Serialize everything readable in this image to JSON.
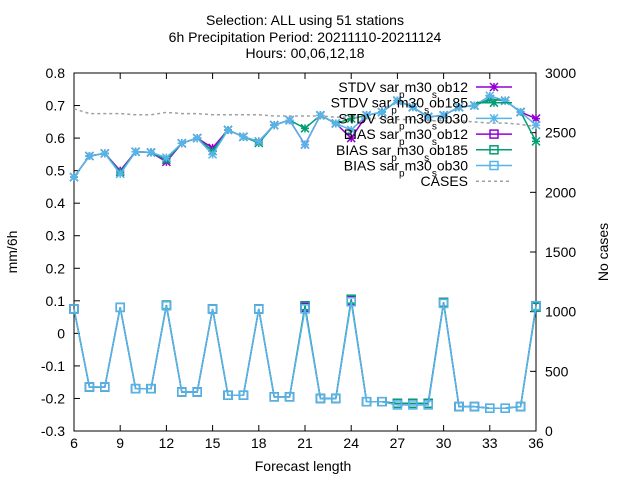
{
  "chart_data": {
    "type": "line",
    "title_lines": [
      "Selection: ALL using    51 stations",
      "6h Precipitation   Period: 20211110-20211124",
      "Hours: 00,06,12,18"
    ],
    "xlabel": "Forecast length",
    "ylabel": "mm/6h",
    "y2label": "No cases",
    "xlim": [
      6,
      36
    ],
    "ylim": [
      -0.3,
      0.8
    ],
    "y2lim": [
      0,
      3000
    ],
    "x_ticks": [
      6,
      9,
      12,
      15,
      18,
      21,
      24,
      27,
      30,
      33,
      36
    ],
    "y_ticks": [
      -0.3,
      -0.2,
      -0.1,
      0,
      0.1,
      0.2,
      0.3,
      0.4,
      0.5,
      0.6,
      0.7,
      0.8
    ],
    "y2_ticks": [
      0,
      500,
      1000,
      1500,
      2000,
      2500,
      3000
    ],
    "y_tick_labels": [
      "-0.3",
      "-0.2",
      "-0.1",
      "0",
      "0.1",
      "0.2",
      "0.3",
      "0.4",
      "0.5",
      "0.6",
      "0.7",
      "0.8"
    ],
    "legend_position": "top-right",
    "x": [
      6,
      7,
      8,
      9,
      10,
      11,
      12,
      13,
      14,
      15,
      16,
      17,
      18,
      19,
      20,
      21,
      22,
      23,
      24,
      25,
      26,
      27,
      28,
      29,
      30,
      31,
      32,
      33,
      34,
      35,
      36
    ],
    "series": [
      {
        "legend": [
          "STDV sar",
          "p",
          "m30",
          "s",
          "ob12"
        ],
        "color": "#9400d3",
        "marker": "star",
        "axis": "y1",
        "values": [
          0.48,
          0.545,
          0.553,
          0.5,
          0.558,
          0.556,
          0.527,
          0.584,
          0.6,
          0.57,
          0.625,
          0.604,
          0.59,
          0.64,
          0.655,
          0.58,
          0.67,
          0.645,
          0.6,
          0.67,
          0.68,
          0.715,
          0.695,
          0.665,
          0.67,
          0.695,
          0.7,
          0.72,
          0.715,
          0.68,
          0.66
        ]
      },
      {
        "legend": [
          "STDV sar",
          "p",
          "m30",
          "s",
          "ob185"
        ],
        "color": "#009e73",
        "marker": "star",
        "axis": "y1",
        "values": [
          0.48,
          0.545,
          0.553,
          0.495,
          0.558,
          0.556,
          0.533,
          0.584,
          0.6,
          0.56,
          0.625,
          0.604,
          0.585,
          0.64,
          0.655,
          0.63,
          0.67,
          0.645,
          0.66,
          0.67,
          0.68,
          0.715,
          0.695,
          0.665,
          0.67,
          0.695,
          0.7,
          0.72,
          0.715,
          0.68,
          0.59
        ]
      },
      {
        "legend": [
          "STDV sar",
          "p",
          "m30",
          "s",
          "ob30"
        ],
        "color": "#56b4e9",
        "marker": "star",
        "axis": "y1",
        "values": [
          0.48,
          0.545,
          0.553,
          0.49,
          0.558,
          0.556,
          0.54,
          0.584,
          0.6,
          0.55,
          0.625,
          0.604,
          0.59,
          0.64,
          0.655,
          0.58,
          0.67,
          0.645,
          0.625,
          0.67,
          0.68,
          0.715,
          0.695,
          0.665,
          0.67,
          0.695,
          0.7,
          0.73,
          0.715,
          0.68,
          0.64
        ]
      },
      {
        "legend": [
          "BIAS sar",
          "p",
          "m30",
          "s",
          "ob12"
        ],
        "color": "#9400d3",
        "marker": "square",
        "axis": "y1",
        "values": [
          0.075,
          -0.165,
          -0.165,
          0.08,
          -0.17,
          -0.17,
          0.085,
          -0.18,
          -0.18,
          0.075,
          -0.19,
          -0.19,
          0.075,
          -0.195,
          -0.195,
          0.08,
          -0.2,
          -0.2,
          0.1,
          -0.21,
          -0.21,
          -0.215,
          -0.215,
          -0.215,
          0.095,
          -0.225,
          -0.225,
          -0.23,
          -0.23,
          -0.225,
          0.085
        ]
      },
      {
        "legend": [
          "BIAS sar",
          "p",
          "m30",
          "s",
          "ob185"
        ],
        "color": "#009e73",
        "marker": "square",
        "axis": "y1",
        "values": [
          0.075,
          -0.165,
          -0.165,
          0.08,
          -0.17,
          -0.17,
          0.087,
          -0.18,
          -0.18,
          0.075,
          -0.19,
          -0.19,
          0.075,
          -0.195,
          -0.195,
          0.085,
          -0.2,
          -0.2,
          0.105,
          -0.21,
          -0.21,
          -0.215,
          -0.215,
          -0.215,
          0.095,
          -0.225,
          -0.225,
          -0.23,
          -0.23,
          -0.225,
          0.08
        ]
      },
      {
        "legend": [
          "BIAS sar",
          "p",
          "m30",
          "s",
          "ob30"
        ],
        "color": "#56b4e9",
        "marker": "square",
        "axis": "y1",
        "values": [
          0.075,
          -0.165,
          -0.165,
          0.08,
          -0.17,
          -0.17,
          0.085,
          -0.18,
          -0.18,
          0.075,
          -0.19,
          -0.19,
          0.075,
          -0.195,
          -0.195,
          0.075,
          -0.2,
          -0.2,
          0.097,
          -0.21,
          -0.21,
          -0.22,
          -0.22,
          -0.22,
          0.092,
          -0.225,
          -0.225,
          -0.23,
          -0.23,
          -0.225,
          0.085
        ]
      },
      {
        "legend": [
          "CASES"
        ],
        "color": "#a0a0a0",
        "marker": "none",
        "dashed": true,
        "axis": "y2",
        "values": [
          2700,
          2660,
          2660,
          2660,
          2650,
          2650,
          2670,
          2660,
          2660,
          2650,
          2650,
          2650,
          2650,
          2640,
          2640,
          2640,
          2640,
          2630,
          2630,
          2620,
          2620,
          2610,
          2610,
          2600,
          2600,
          2600,
          2590,
          2580,
          2580,
          2570,
          2550
        ]
      }
    ]
  }
}
